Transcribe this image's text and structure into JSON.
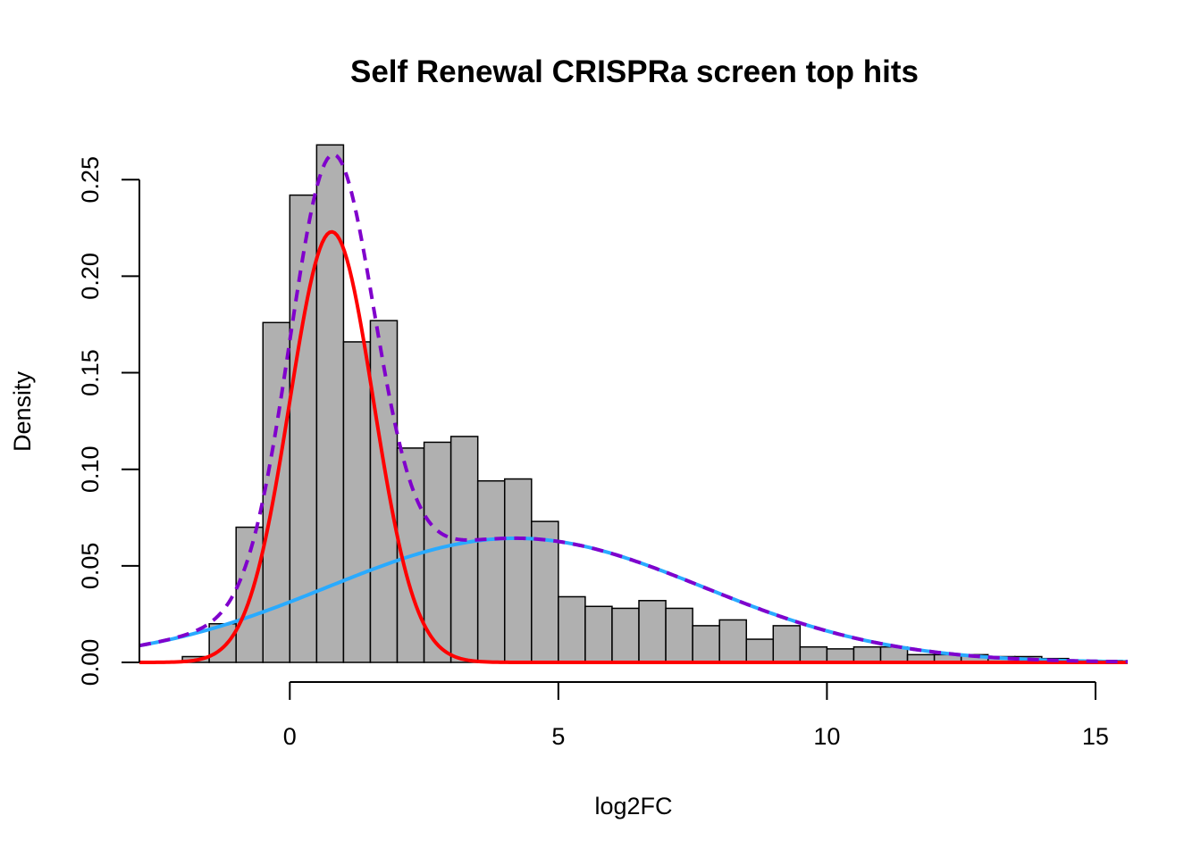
{
  "chart_data": {
    "type": "histogram",
    "title": "Self Renewal CRISPRa screen top hits",
    "xlabel": "log2FC",
    "ylabel": "Density",
    "xlim": [
      -2.8,
      15.6
    ],
    "ylim": [
      0,
      0.27
    ],
    "grid": false,
    "x_ticks": [
      0,
      5,
      10,
      15
    ],
    "y_ticks": [
      0.0,
      0.05,
      0.1,
      0.15,
      0.2,
      0.25
    ],
    "y_tick_labels": [
      "0.00",
      "0.05",
      "0.10",
      "0.15",
      "0.20",
      "0.25"
    ],
    "bin_width": 0.5,
    "bin_start": -2.0,
    "densities": [
      0.003,
      0.02,
      0.07,
      0.176,
      0.242,
      0.268,
      0.166,
      0.177,
      0.111,
      0.114,
      0.117,
      0.094,
      0.095,
      0.073,
      0.034,
      0.029,
      0.028,
      0.032,
      0.028,
      0.019,
      0.022,
      0.012,
      0.019,
      0.008,
      0.007,
      0.008,
      0.008,
      0.004,
      0.004,
      0.004,
      0.003,
      0.003,
      0.002,
      0.001,
      0.001,
      0.0
    ],
    "bar_color": "#b0b0b0",
    "series": [
      {
        "color": "#ff0000",
        "style": "solid",
        "weight": 0.436,
        "mean": 0.78,
        "sd": 0.78
      },
      {
        "color": "#29aaff",
        "style": "solid",
        "weight": 0.564,
        "mean": 4.2,
        "sd": 3.5
      },
      {
        "color": "#8000cc",
        "style": "dashed",
        "kind": "sum"
      }
    ]
  }
}
